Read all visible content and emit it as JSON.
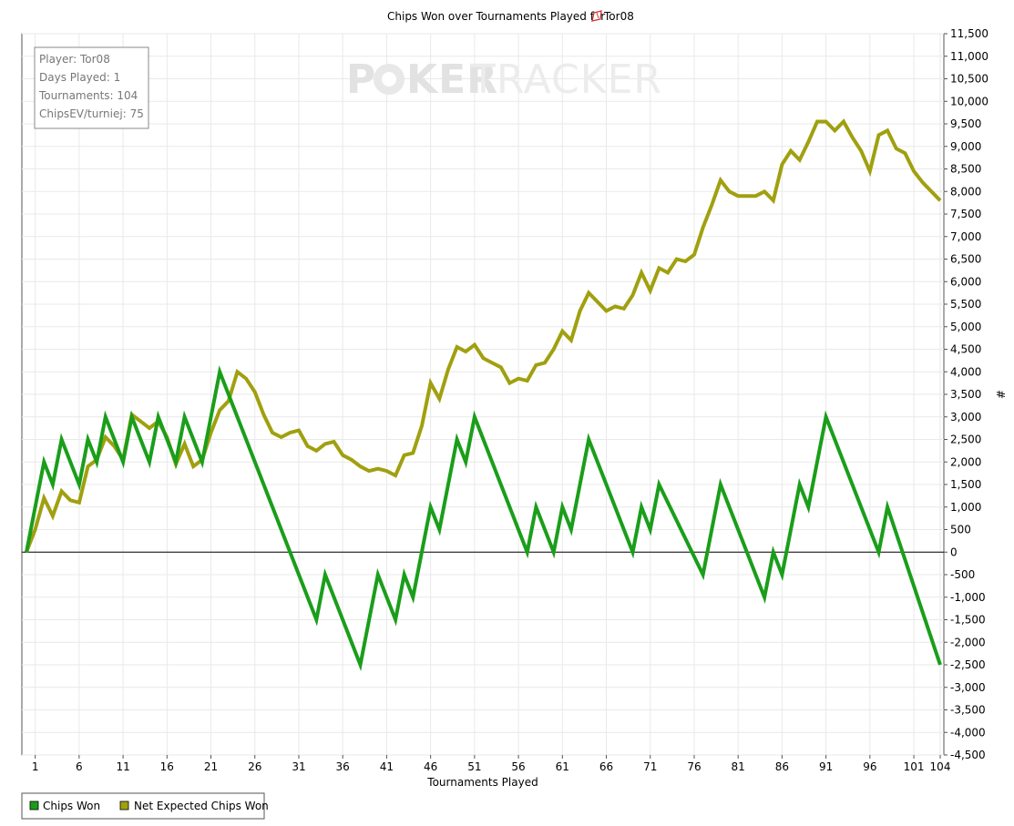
{
  "chart_data": {
    "type": "line",
    "title": "Chips Won over Tournaments Played for",
    "title_player": "Tor08",
    "xlabel": "Tournaments Played",
    "ylabel": "#",
    "xlim": [
      0,
      104
    ],
    "ylim": [
      -4500,
      11500
    ],
    "xticks": [
      1,
      6,
      11,
      16,
      21,
      26,
      31,
      36,
      41,
      46,
      51,
      56,
      61,
      66,
      71,
      76,
      81,
      86,
      91,
      96,
      101,
      104
    ],
    "yticks": [
      -4500,
      -4000,
      -3500,
      -3000,
      -2500,
      -2000,
      -1500,
      -1000,
      -500,
      0,
      500,
      1000,
      1500,
      2000,
      2500,
      3000,
      3500,
      4000,
      4500,
      5000,
      5500,
      6000,
      6500,
      7000,
      7500,
      8000,
      8500,
      9000,
      9500,
      10000,
      10500,
      11000,
      11500
    ],
    "ytick_labels": [
      "-4,500",
      "-4,000",
      "-3,500",
      "-3,000",
      "-2,500",
      "-2,000",
      "-1,500",
      "-1,000",
      "-500",
      "0",
      "500",
      "1,000",
      "1,500",
      "2,000",
      "2,500",
      "3,000",
      "3,500",
      "4,000",
      "4,500",
      "5,000",
      "5,500",
      "6,000",
      "6,500",
      "7,000",
      "7,500",
      "8,000",
      "8,500",
      "9,000",
      "9,500",
      "10,000",
      "10,500",
      "11,000",
      "11,500"
    ],
    "grid": true,
    "legend_position": "bottom-left",
    "series": [
      {
        "name": "Chips Won",
        "color": "#1a9e1a",
        "points": [
          [
            0,
            0
          ],
          [
            2,
            2000
          ],
          [
            3,
            1500
          ],
          [
            4,
            2500
          ],
          [
            6,
            1500
          ],
          [
            7,
            2500
          ],
          [
            8,
            2000
          ],
          [
            9,
            3000
          ],
          [
            11,
            2000
          ],
          [
            12,
            3000
          ],
          [
            14,
            2000
          ],
          [
            15,
            3000
          ],
          [
            17,
            2000
          ],
          [
            18,
            3000
          ],
          [
            20,
            2000
          ],
          [
            22,
            4000
          ],
          [
            33,
            -1500
          ],
          [
            34,
            -500
          ],
          [
            38,
            -2500
          ],
          [
            40,
            -500
          ],
          [
            42,
            -1500
          ],
          [
            43,
            -500
          ],
          [
            44,
            -1000
          ],
          [
            46,
            1000
          ],
          [
            47,
            500
          ],
          [
            49,
            2500
          ],
          [
            50,
            2000
          ],
          [
            51,
            3000
          ],
          [
            57,
            0
          ],
          [
            58,
            1000
          ],
          [
            60,
            0
          ],
          [
            61,
            1000
          ],
          [
            62,
            500
          ],
          [
            64,
            2500
          ],
          [
            69,
            0
          ],
          [
            70,
            1000
          ],
          [
            71,
            500
          ],
          [
            72,
            1500
          ],
          [
            77,
            -500
          ],
          [
            79,
            1500
          ],
          [
            84,
            -1000
          ],
          [
            85,
            0
          ],
          [
            86,
            -500
          ],
          [
            88,
            1500
          ],
          [
            89,
            1000
          ],
          [
            91,
            3000
          ],
          [
            97,
            0
          ],
          [
            98,
            1000
          ],
          [
            104,
            -2500
          ]
        ]
      },
      {
        "name": "Net Expected Chips Won",
        "color": "#a0a010",
        "points": [
          [
            0,
            0
          ],
          [
            1,
            500
          ],
          [
            2,
            1200
          ],
          [
            3,
            800
          ],
          [
            4,
            1350
          ],
          [
            5,
            1150
          ],
          [
            6,
            1100
          ],
          [
            7,
            1900
          ],
          [
            8,
            2050
          ],
          [
            9,
            2550
          ],
          [
            10,
            2350
          ],
          [
            11,
            2050
          ],
          [
            12,
            3050
          ],
          [
            13,
            2900
          ],
          [
            14,
            2750
          ],
          [
            15,
            2900
          ],
          [
            16,
            2550
          ],
          [
            17,
            1950
          ],
          [
            18,
            2400
          ],
          [
            19,
            1900
          ],
          [
            20,
            2050
          ],
          [
            21,
            2650
          ],
          [
            22,
            3150
          ],
          [
            23,
            3350
          ],
          [
            24,
            4000
          ],
          [
            25,
            3850
          ],
          [
            26,
            3550
          ],
          [
            27,
            3050
          ],
          [
            28,
            2650
          ],
          [
            29,
            2550
          ],
          [
            30,
            2650
          ],
          [
            31,
            2700
          ],
          [
            32,
            2350
          ],
          [
            33,
            2250
          ],
          [
            34,
            2400
          ],
          [
            35,
            2450
          ],
          [
            36,
            2150
          ],
          [
            37,
            2050
          ],
          [
            38,
            1900
          ],
          [
            39,
            1800
          ],
          [
            40,
            1850
          ],
          [
            41,
            1800
          ],
          [
            42,
            1700
          ],
          [
            43,
            2150
          ],
          [
            44,
            2200
          ],
          [
            45,
            2800
          ],
          [
            46,
            3750
          ],
          [
            47,
            3400
          ],
          [
            48,
            4050
          ],
          [
            49,
            4550
          ],
          [
            50,
            4450
          ],
          [
            51,
            4600
          ],
          [
            52,
            4300
          ],
          [
            53,
            4200
          ],
          [
            54,
            4100
          ],
          [
            55,
            3750
          ],
          [
            56,
            3850
          ],
          [
            57,
            3800
          ],
          [
            58,
            4150
          ],
          [
            59,
            4200
          ],
          [
            60,
            4500
          ],
          [
            61,
            4900
          ],
          [
            62,
            4700
          ],
          [
            63,
            5350
          ],
          [
            64,
            5750
          ],
          [
            65,
            5550
          ],
          [
            66,
            5350
          ],
          [
            67,
            5450
          ],
          [
            68,
            5400
          ],
          [
            69,
            5700
          ],
          [
            70,
            6200
          ],
          [
            71,
            5800
          ],
          [
            72,
            6300
          ],
          [
            73,
            6200
          ],
          [
            74,
            6500
          ],
          [
            75,
            6450
          ],
          [
            76,
            6600
          ],
          [
            77,
            7200
          ],
          [
            78,
            7700
          ],
          [
            79,
            8250
          ],
          [
            80,
            8000
          ],
          [
            81,
            7900
          ],
          [
            82,
            7900
          ],
          [
            83,
            7900
          ],
          [
            84,
            8000
          ],
          [
            85,
            7800
          ],
          [
            86,
            8600
          ],
          [
            87,
            8900
          ],
          [
            88,
            8700
          ],
          [
            89,
            9100
          ],
          [
            90,
            9550
          ],
          [
            91,
            9550
          ],
          [
            92,
            9350
          ],
          [
            93,
            9550
          ],
          [
            94,
            9200
          ],
          [
            95,
            8900
          ],
          [
            96,
            8450
          ],
          [
            97,
            9250
          ],
          [
            98,
            9350
          ],
          [
            99,
            8950
          ],
          [
            100,
            8850
          ],
          [
            101,
            8450
          ],
          [
            102,
            8200
          ],
          [
            103,
            8000
          ],
          [
            104,
            7800
          ]
        ]
      }
    ]
  },
  "info_box": {
    "player": "Player: Tor08",
    "days": "Days Played: 1",
    "tournaments": "Tournaments: 104",
    "chips_ev": "ChipsEV/turniej: 75"
  },
  "watermark": {
    "part1": "P",
    "part2": "KER",
    "part3": "TRACKER"
  },
  "legend": {
    "chips_won": "Chips Won",
    "net_expected": "Net Expected Chips Won"
  }
}
